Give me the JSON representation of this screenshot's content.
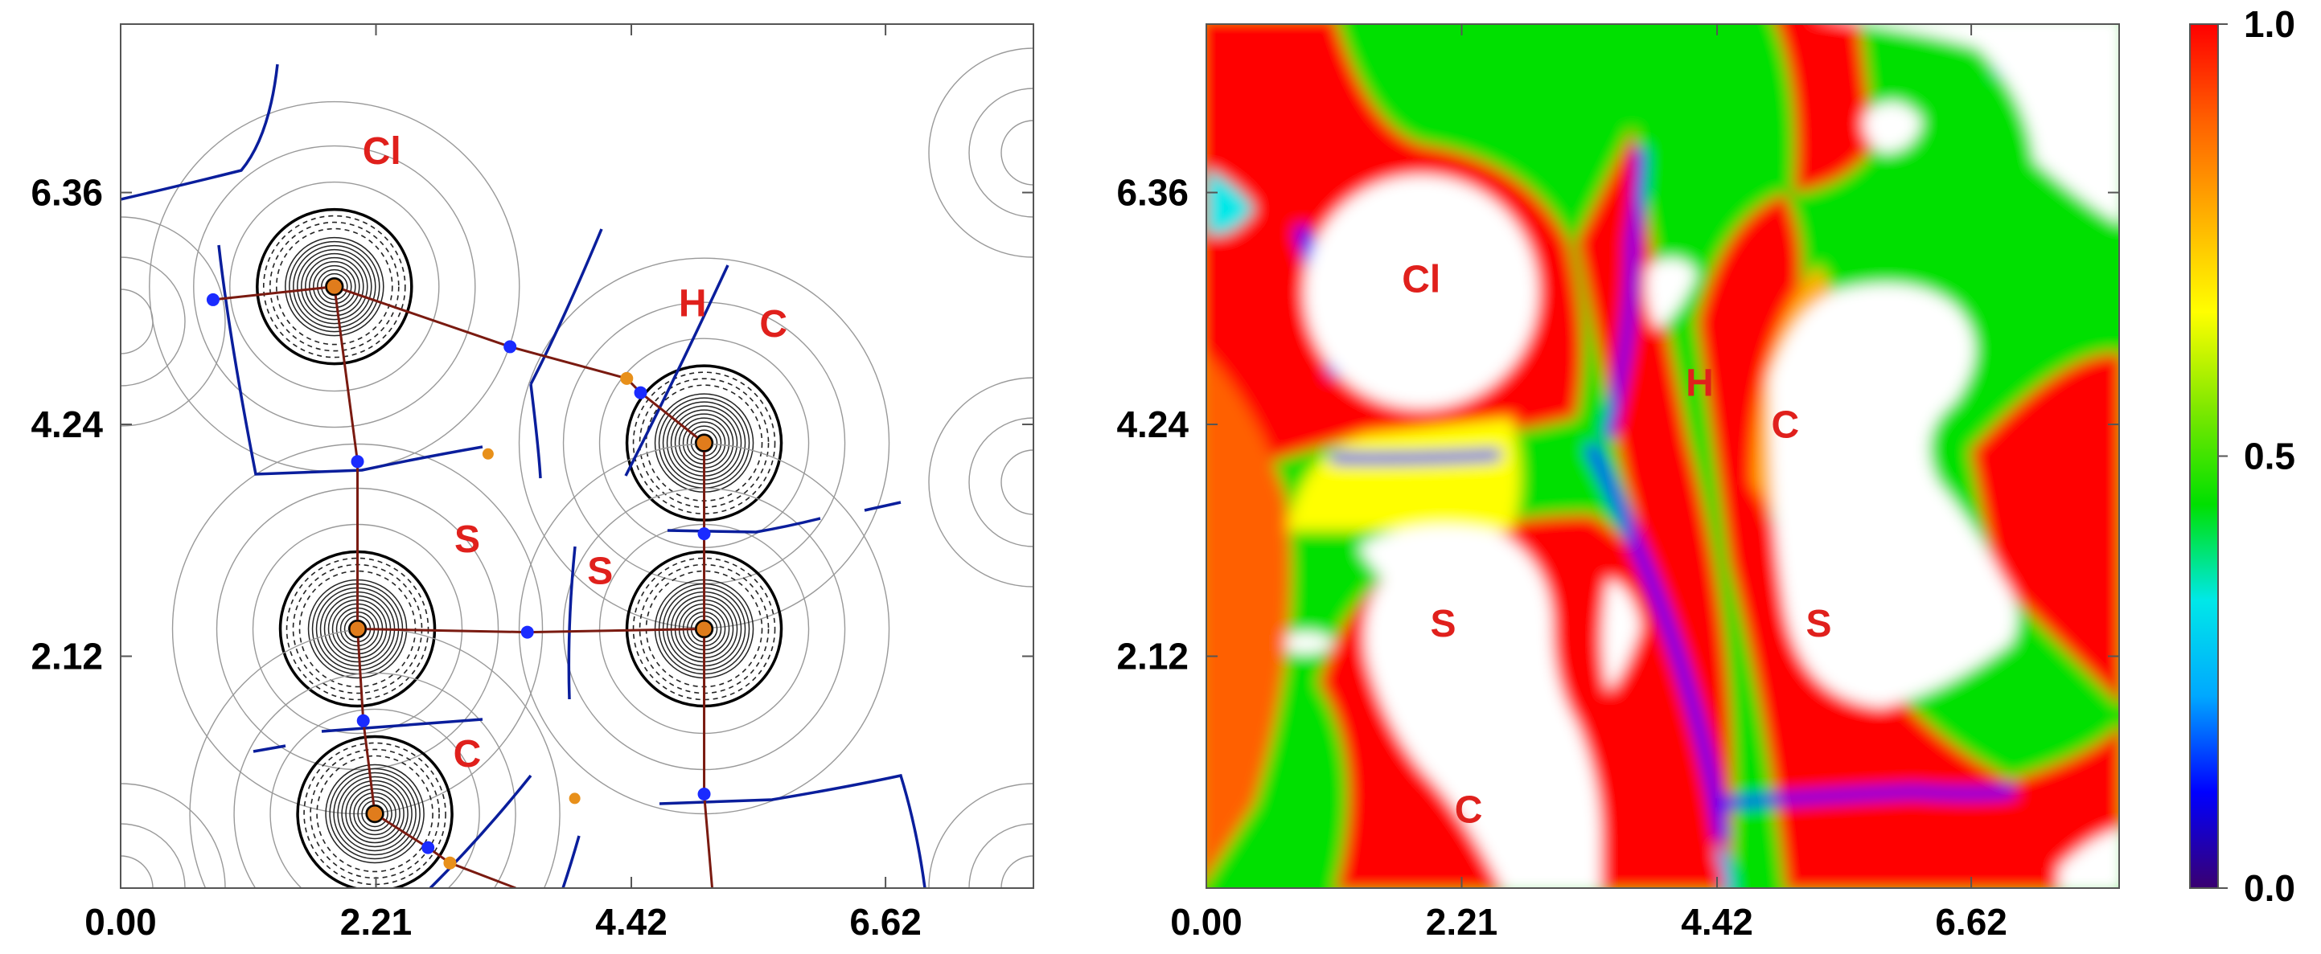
{
  "figure": {
    "left_panel": {
      "kind": "contour map with bond paths and critical points",
      "atom_labels": [
        {
          "text": "Cl",
          "x": 2.26,
          "y": 6.62
        },
        {
          "text": "H",
          "x": 4.95,
          "y": 5.23
        },
        {
          "text": "C",
          "x": 5.65,
          "y": 5.04
        },
        {
          "text": "S",
          "x": 3.0,
          "y": 3.07
        },
        {
          "text": "S",
          "x": 4.15,
          "y": 2.78
        },
        {
          "text": "C",
          "x": 3.0,
          "y": 1.11
        }
      ],
      "nuclei": [
        {
          "x": 1.85,
          "y": 5.5
        },
        {
          "x": 2.05,
          "y": 2.37
        },
        {
          "x": 2.2,
          "y": 0.68
        },
        {
          "x": 5.05,
          "y": 4.07
        },
        {
          "x": 5.05,
          "y": 2.37
        }
      ],
      "hydrogen_nuclei": [
        {
          "x": 4.38,
          "y": 4.66
        },
        {
          "x": 2.85,
          "y": 0.23
        }
      ],
      "bond_critical_points": [
        {
          "x": 0.8,
          "y": 5.38
        },
        {
          "x": 3.37,
          "y": 4.95
        },
        {
          "x": 2.05,
          "y": 3.9
        },
        {
          "x": 4.5,
          "y": 4.53
        },
        {
          "x": 5.05,
          "y": 3.24
        },
        {
          "x": 3.52,
          "y": 2.34
        },
        {
          "x": 2.1,
          "y": 1.53
        },
        {
          "x": 2.66,
          "y": 0.37
        },
        {
          "x": 5.05,
          "y": 0.86
        }
      ],
      "ring_critical_points": [
        {
          "x": 3.18,
          "y": 3.97
        },
        {
          "x": 3.93,
          "y": 0.82
        }
      ]
    },
    "right_panel": {
      "kind": "color-filled map",
      "atom_labels": [
        {
          "text": "Cl",
          "x": 1.86,
          "y": 5.45
        },
        {
          "text": "H",
          "x": 4.27,
          "y": 4.5
        },
        {
          "text": "C",
          "x": 5.01,
          "y": 4.12
        },
        {
          "text": "S",
          "x": 2.05,
          "y": 2.3
        },
        {
          "text": "S",
          "x": 5.3,
          "y": 2.3
        },
        {
          "text": "C",
          "x": 2.27,
          "y": 0.6
        }
      ]
    },
    "colorbar": {
      "ticks": [
        "1.0",
        "0.5",
        "0.0"
      ],
      "tick_values": [
        1.0,
        0.5,
        0.0
      ],
      "colors": [
        "#3a0070",
        "#0000ff",
        "#00a8ff",
        "#00e8e8",
        "#00e000",
        "#80e800",
        "#ffff00",
        "#ffb000",
        "#ff6000",
        "#ff0000"
      ]
    }
  },
  "chart_data": [
    {
      "type": "heatmap",
      "title": "",
      "xlabel": "",
      "ylabel": "",
      "xlim": [
        0,
        7.9
      ],
      "ylim": [
        0,
        7.9
      ],
      "xticks": [
        "0.00",
        "2.21",
        "4.42",
        "6.62"
      ],
      "xtick_values": [
        0.0,
        2.21,
        4.42,
        6.62
      ],
      "yticks": [
        "2.12",
        "4.24",
        "6.36"
      ],
      "ytick_values": [
        2.12,
        4.24,
        6.36
      ],
      "grid": false,
      "colorscale": false
    },
    {
      "type": "heatmap",
      "title": "",
      "xlabel": "",
      "ylabel": "",
      "xlim": [
        0,
        7.9
      ],
      "ylim": [
        0,
        7.9
      ],
      "xticks": [
        "0.00",
        "2.21",
        "4.42",
        "6.62"
      ],
      "xtick_values": [
        0.0,
        2.21,
        4.42,
        6.62
      ],
      "yticks": [
        "2.12",
        "4.24",
        "6.36"
      ],
      "ytick_values": [
        2.12,
        4.24,
        6.36
      ],
      "grid": false,
      "colorscale": [
        0.0,
        1.0
      ],
      "legend": "right"
    }
  ]
}
